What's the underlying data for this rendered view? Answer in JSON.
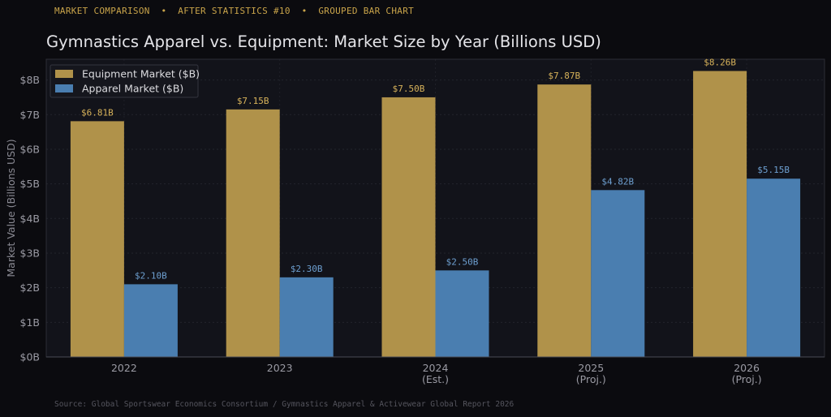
{
  "header": {
    "kicker": "MARKET COMPARISON  •  AFTER STATISTICS #10  •  GROUPED BAR CHART"
  },
  "colors": {
    "equipment": "#b0924a",
    "apparel": "#4a7eb0",
    "equipment_label": "#d7b25a",
    "apparel_label": "#6d9fd0"
  },
  "chart_data": {
    "type": "bar",
    "title": "Gymnastics Apparel vs. Equipment: Market Size by Year (Billions USD)",
    "xlabel": "",
    "ylabel": "Market Value (Billions USD)",
    "categories": [
      [
        "2022"
      ],
      [
        "2023"
      ],
      [
        "2024",
        "(Est.)"
      ],
      [
        "2025",
        "(Proj.)"
      ],
      [
        "2026",
        "(Proj.)"
      ]
    ],
    "series": [
      {
        "name": "Equipment Market ($B)",
        "values": [
          6.81,
          7.15,
          7.5,
          7.87,
          8.26
        ],
        "labels": [
          "$6.81B",
          "$7.15B",
          "$7.50B",
          "$7.87B",
          "$8.26B"
        ]
      },
      {
        "name": "Apparel Market ($B)",
        "values": [
          2.1,
          2.3,
          2.5,
          4.82,
          5.15
        ],
        "labels": [
          "$2.10B",
          "$2.30B",
          "$2.50B",
          "$4.82B",
          "$5.15B"
        ]
      }
    ],
    "ylim": [
      0,
      8.6
    ],
    "yticks": [
      0,
      1,
      2,
      3,
      4,
      5,
      6,
      7,
      8
    ],
    "ytick_labels": [
      "$0B",
      "$1B",
      "$2B",
      "$3B",
      "$4B",
      "$5B",
      "$6B",
      "$7B",
      "$8B"
    ],
    "grid": true,
    "legend_position": "top-left"
  },
  "footer": {
    "source": "Source: Global Sportswear Economics Consortium / Gymnastics Apparel & Activewear Global Report 2026"
  }
}
